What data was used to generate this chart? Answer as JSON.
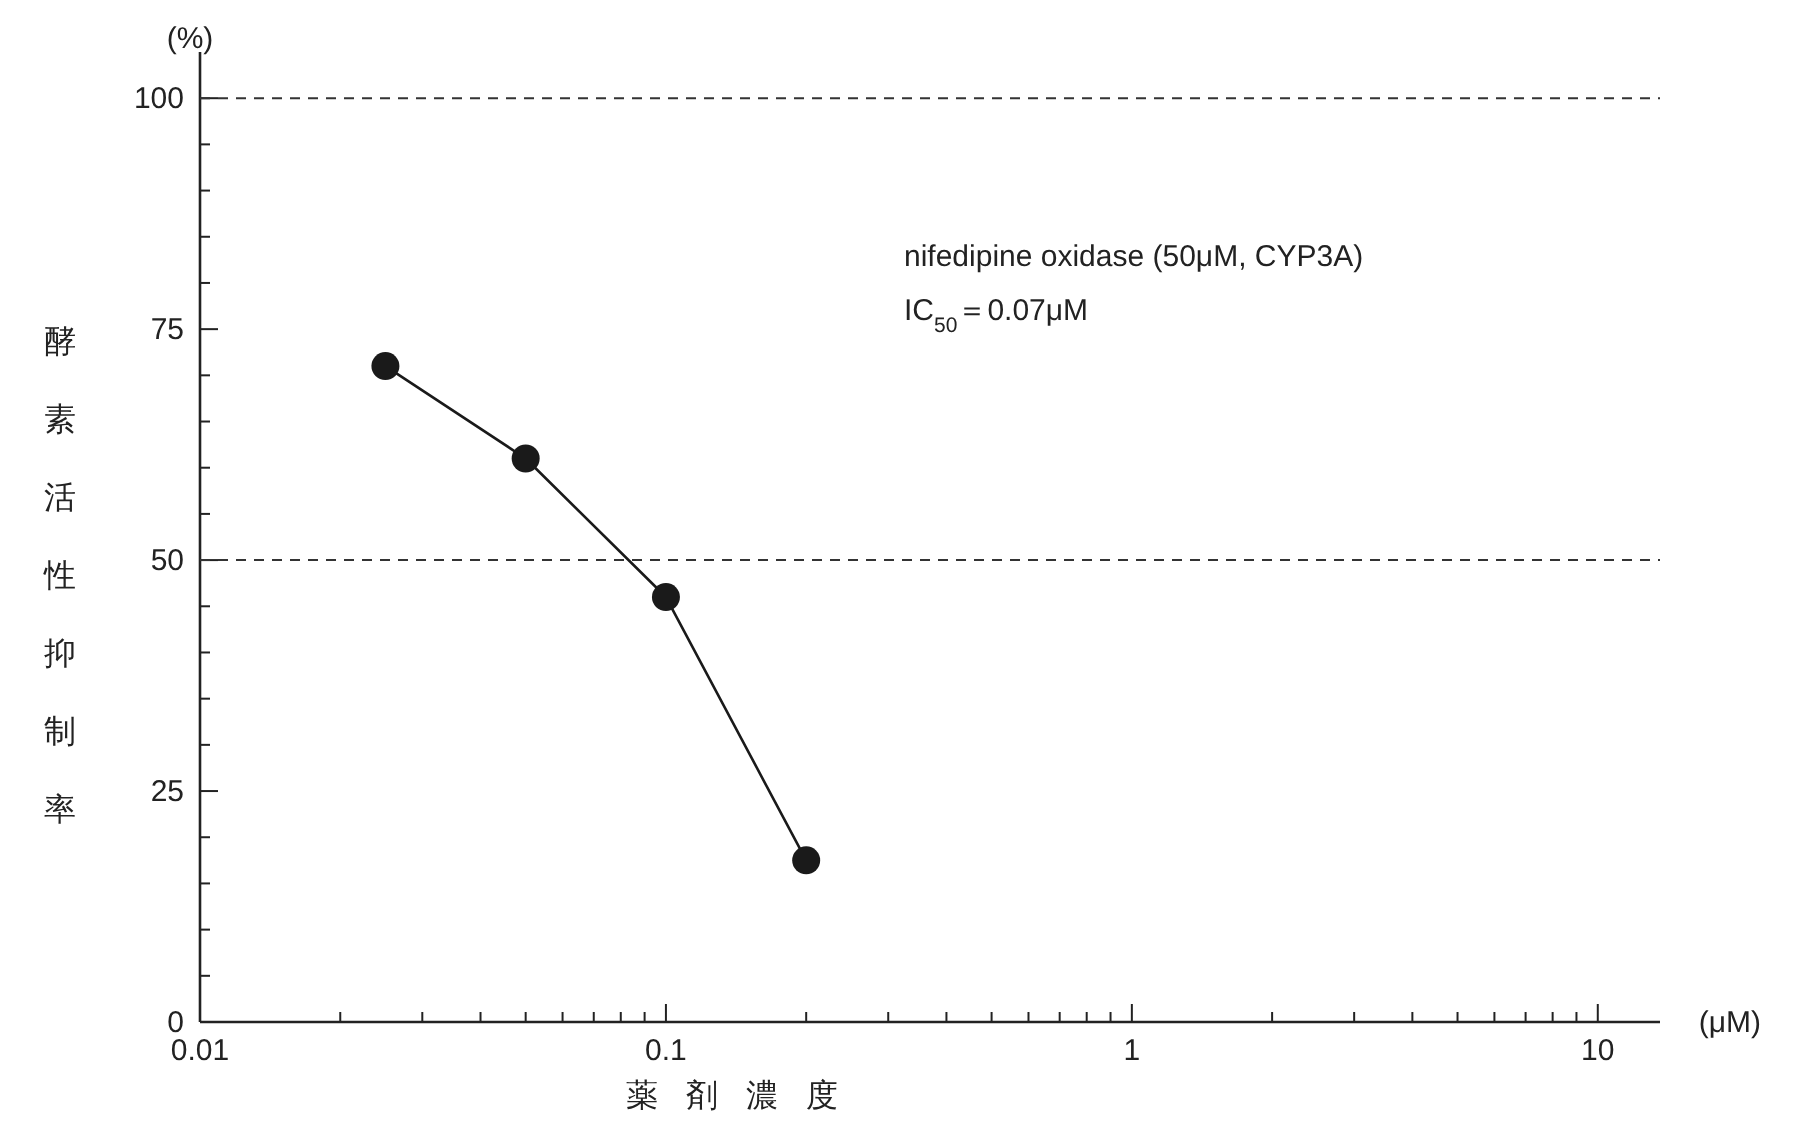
{
  "chart_data": {
    "type": "line",
    "xlabel": "薬剤濃度",
    "ylabel": "酵素活性抑制率",
    "x": [
      0.025,
      0.05,
      0.1,
      0.2
    ],
    "series": [
      {
        "color": "#1a1a1a",
        "values": [
          71,
          61,
          46,
          17.5
        ]
      }
    ],
    "log": "x",
    "xlim": [
      0.01,
      13.6
    ],
    "ylim": [
      0,
      105
    ],
    "xticks": [
      0.01,
      {
        "value": 0.02,
        "label": null
      },
      {
        "value": 0.03,
        "label": null
      },
      {
        "value": 0.04,
        "label": null
      },
      {
        "value": 0.05,
        "label": null
      },
      {
        "value": 0.06,
        "label": null
      },
      {
        "value": 0.07,
        "label": null
      },
      {
        "value": 0.08,
        "label": null
      },
      {
        "value": 0.09,
        "label": null
      },
      0.1,
      {
        "value": 0.2,
        "label": null
      },
      {
        "value": 0.3,
        "label": null
      },
      {
        "value": 0.4,
        "label": null
      },
      {
        "value": 0.5,
        "label": null
      },
      {
        "value": 0.6,
        "label": null
      },
      {
        "value": 0.7,
        "label": null
      },
      {
        "value": 0.8,
        "label": null
      },
      {
        "value": 0.9,
        "label": null
      },
      1,
      {
        "value": 2,
        "label": null
      },
      {
        "value": 3,
        "label": null
      },
      {
        "value": 4,
        "label": null
      },
      {
        "value": 5,
        "label": null
      },
      {
        "value": 6,
        "label": null
      },
      {
        "value": 7,
        "label": null
      },
      {
        "value": 8,
        "label": null
      },
      {
        "value": 9,
        "label": null
      },
      10
    ],
    "yticks": [
      0,
      {
        "value": 5,
        "label": null
      },
      {
        "value": 10,
        "label": null
      },
      {
        "value": 15,
        "label": null
      },
      {
        "value": 20,
        "label": null
      },
      25,
      {
        "value": 30,
        "label": null
      },
      {
        "value": 35,
        "label": null
      },
      {
        "value": 40,
        "label": null
      },
      {
        "value": 45,
        "label": null
      },
      50,
      {
        "value": 55,
        "label": null
      },
      {
        "value": 60,
        "label": null
      },
      {
        "value": 65,
        "label": null
      },
      {
        "value": 70,
        "label": null
      },
      75,
      {
        "value": 80,
        "label": null
      },
      {
        "value": 85,
        "label": null
      },
      {
        "value": 90,
        "label": null
      },
      {
        "value": 95,
        "label": null
      },
      100
    ],
    "ref_lines": [
      {
        "axis": "y",
        "value": 100,
        "line_style": "dashed"
      },
      {
        "axis": "y",
        "value": 50,
        "line_style": "dashed"
      }
    ],
    "marker": "circle",
    "line_style": "solid",
    "grid": false,
    "annotations": [
      "(%)",
      "(μM)",
      "nifedipine oxidase (50μM, CYP3A)",
      "IC$_{50}$＝0.07μM"
    ]
  }
}
